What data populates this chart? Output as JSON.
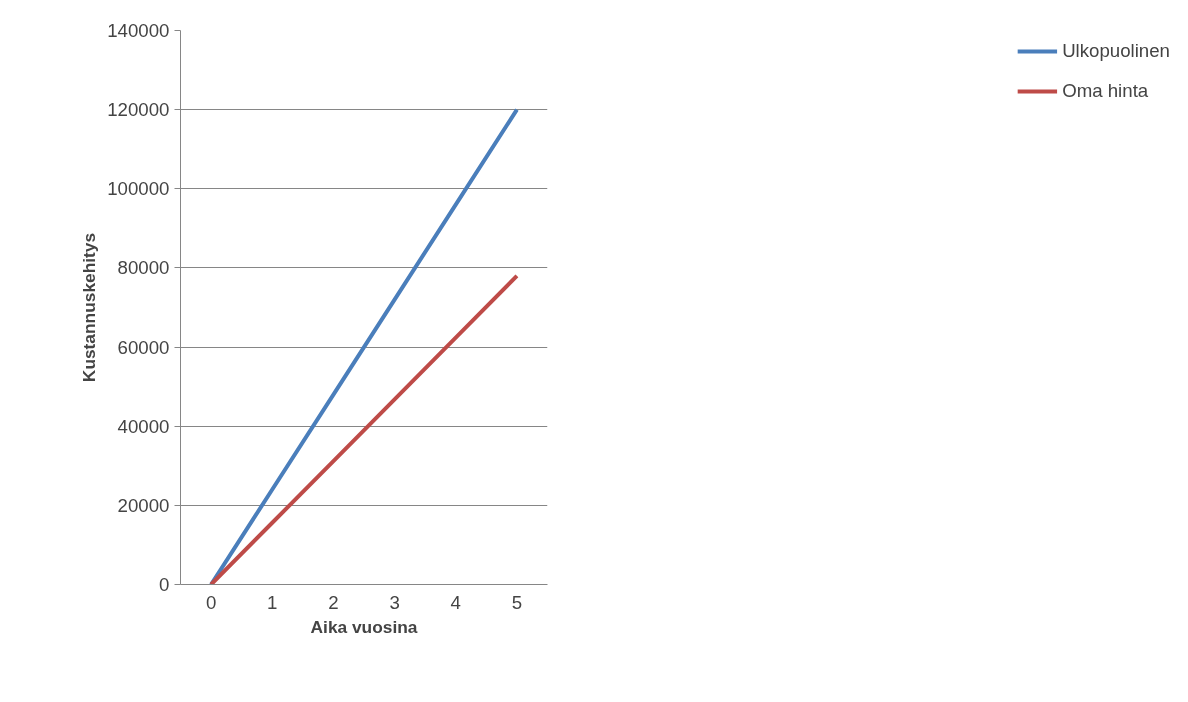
{
  "chart_data": {
    "type": "line",
    "xlabel": "Aika vuosina",
    "ylabel": "Kustannuskehitys",
    "categories": [
      "0",
      "1",
      "2",
      "3",
      "4",
      "5"
    ],
    "series": [
      {
        "name": "Ulkopuolinen",
        "color": "#4a7ebb",
        "values": [
          0,
          24000,
          48000,
          72000,
          96000,
          120000
        ]
      },
      {
        "name": "Oma hinta",
        "color": "#be4b48",
        "values": [
          0,
          15600,
          31200,
          46800,
          62400,
          78000
        ]
      }
    ],
    "ylim": [
      0,
      140000
    ],
    "yticks": [
      0,
      20000,
      40000,
      60000,
      80000,
      100000,
      120000,
      140000
    ],
    "grid": "y",
    "legend": "right",
    "marker": "none",
    "line_style": "solid"
  }
}
